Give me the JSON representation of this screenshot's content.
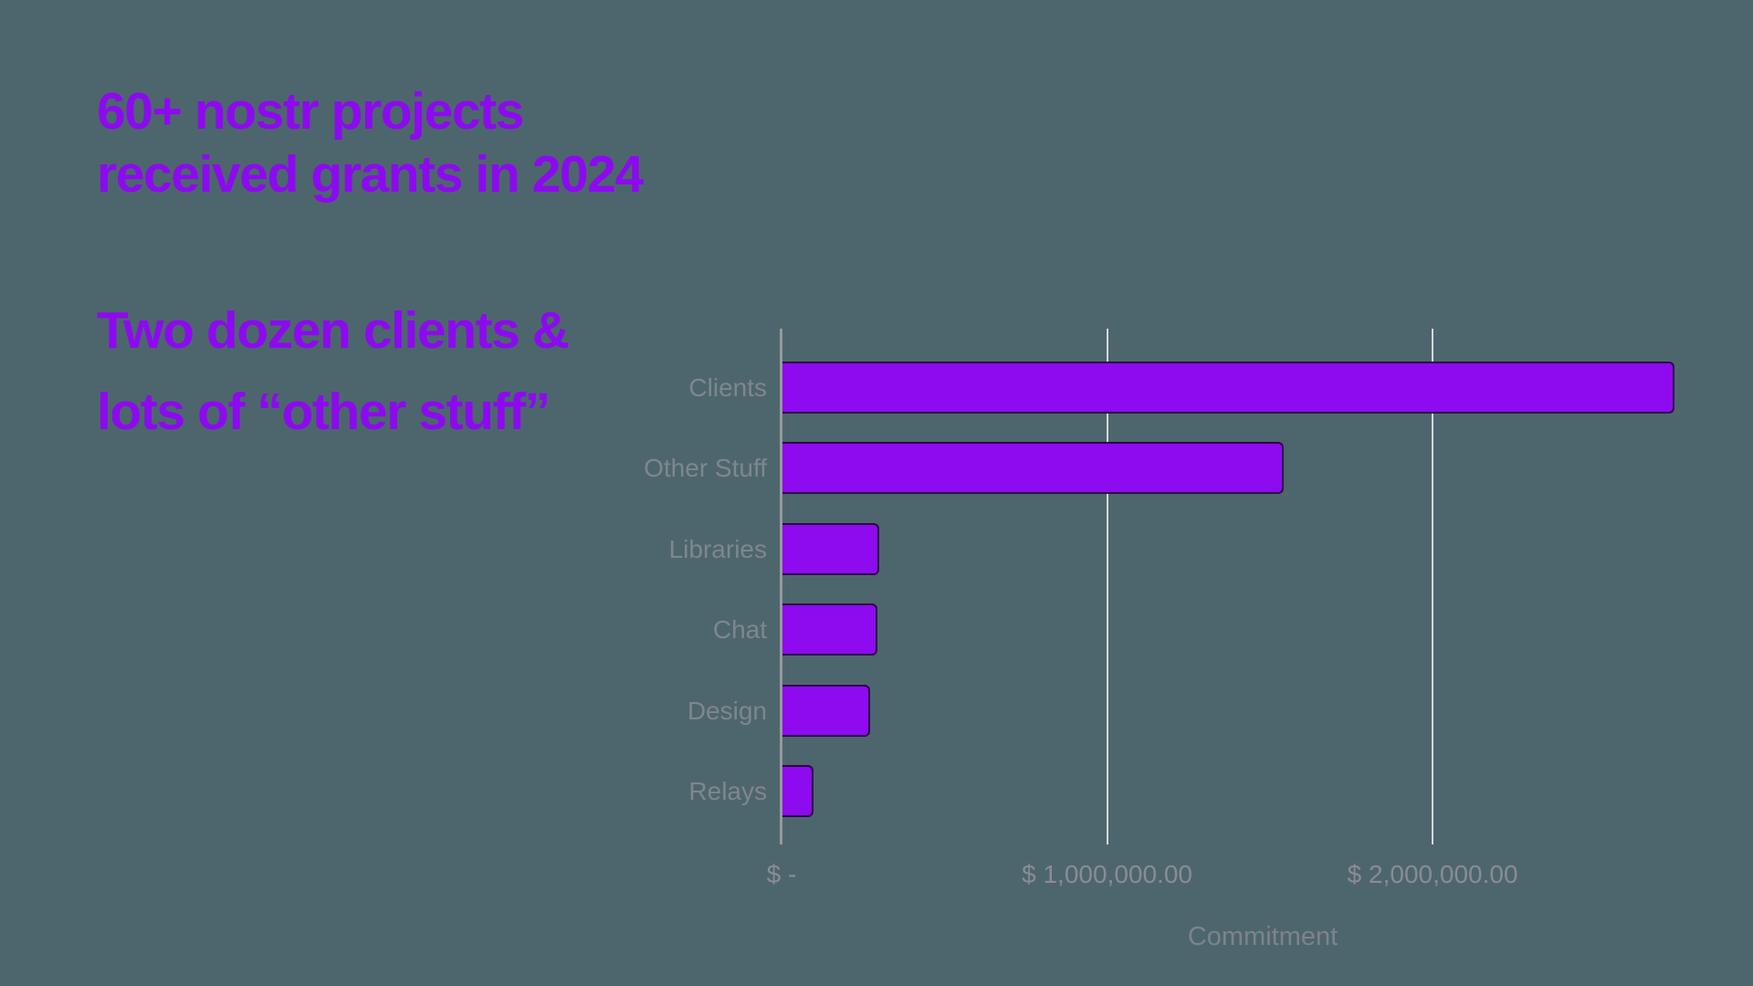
{
  "slide": {
    "background_color": "#4d666d",
    "heading": {
      "text": "60+ nostr projects\nreceived grants in 2024",
      "color": "#8d09f0"
    },
    "subheading": {
      "text": "Two dozen clients &\nlots of “other stuff”",
      "color": "#8d09f0"
    }
  },
  "chart_data": {
    "type": "bar",
    "orientation": "horizontal",
    "title": "",
    "categories": [
      "Clients",
      "Other Stuff",
      "Libraries",
      "Chat",
      "Design",
      "Relays"
    ],
    "values": [
      2740000,
      1540000,
      298000,
      292000,
      270000,
      95000
    ],
    "xlabel": "Commitment",
    "ylabel": "",
    "xlim": [
      0,
      2900000
    ],
    "x_ticks": [
      {
        "value": 0,
        "label": "$ -"
      },
      {
        "value": 1000000,
        "label": "$ 1,000,000.00"
      },
      {
        "value": 2000000,
        "label": "$ 2,000,000.00"
      }
    ],
    "gridlines": [
      1000000,
      2000000
    ],
    "grid": "vertical-only",
    "legend": "none",
    "colors": {
      "bar_fill": "#8e0aef",
      "bar_border": "#2a0845",
      "gridline": "#d6d8db",
      "axis_line": "#97999d",
      "category_label": "#7f868e",
      "tick_label": "#8a8b95",
      "axis_title": "#7d838c"
    }
  }
}
